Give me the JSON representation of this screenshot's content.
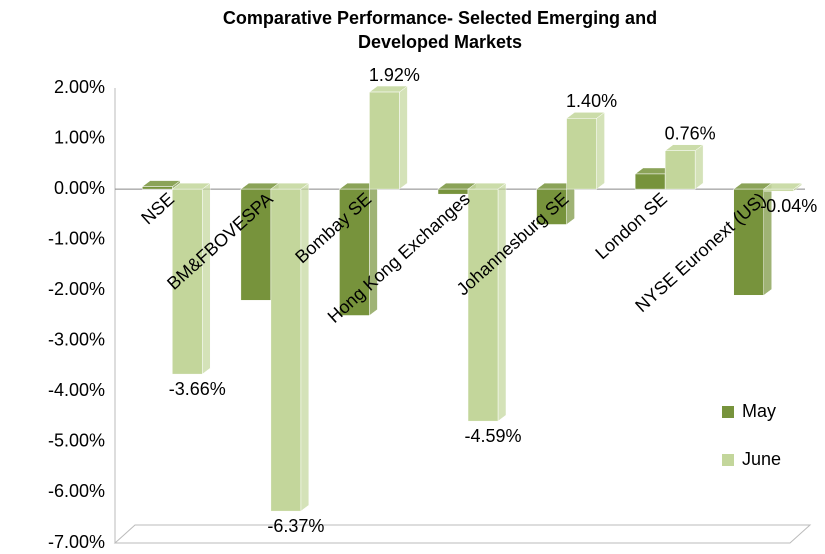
{
  "chart_data": {
    "type": "bar",
    "title": "Comparative Performance- Selected  Emerging and Developed Markets",
    "categories": [
      "NSE",
      "BM&FBOVESPA",
      "Bombay SE",
      "Hong Kong Exchanges",
      "Johannesburg SE",
      "London SE",
      "NYSE Euronext (US)"
    ],
    "series": [
      {
        "name": "May",
        "color": "#77933c",
        "values": [
          0.05,
          -2.2,
          -2.5,
          -0.1,
          -0.7,
          0.3,
          -2.1
        ]
      },
      {
        "name": "June",
        "color": "#c3d69b",
        "values": [
          -3.66,
          -6.37,
          1.92,
          -4.59,
          1.4,
          0.76,
          -0.04
        ],
        "value_labels": [
          "-3.66%",
          "-6.37%",
          "1.92%",
          "-4.59%",
          "1.40%",
          "0.76%",
          "-0.04%"
        ]
      }
    ],
    "ylim": [
      -7,
      2
    ],
    "yticks": [
      {
        "value": -7,
        "label": "-7.00%"
      },
      {
        "value": -6,
        "label": "-6.00%"
      },
      {
        "value": -5,
        "label": "-5.00%"
      },
      {
        "value": -4,
        "label": "-4.00%"
      },
      {
        "value": -3,
        "label": "-3.00%"
      },
      {
        "value": -2,
        "label": "-2.00%"
      },
      {
        "value": -1,
        "label": "-1.00%"
      },
      {
        "value": 0,
        "label": "0.00%"
      },
      {
        "value": 1,
        "label": "1.00%"
      },
      {
        "value": 2,
        "label": "2.00%"
      }
    ],
    "grid": false,
    "legend": "right"
  }
}
